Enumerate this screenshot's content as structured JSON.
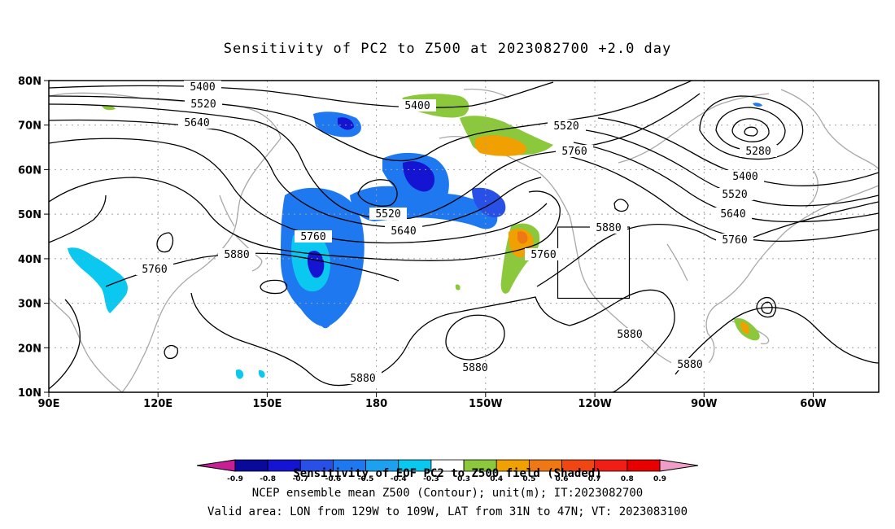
{
  "title": "Sensitivity of PC2 to Z500 at 2023082700 +2.0 day",
  "lat_labels": [
    "80N",
    "70N",
    "60N",
    "50N",
    "40N",
    "30N",
    "20N",
    "10N"
  ],
  "lon_labels": [
    "90E",
    "120E",
    "150E",
    "180",
    "150W",
    "120W",
    "90W",
    "60W"
  ],
  "contour_labels": {
    "c5400a": "5400",
    "c5520a": "5520",
    "c5640a": "5640",
    "c5400b": "5400",
    "c5520b": "5520",
    "c5760a": "5760",
    "c5280": "5280",
    "c5400c": "5400",
    "c5520c": "5520",
    "c5640c": "5640",
    "c5760c": "5760",
    "c5520d": "5520",
    "c5640d": "5640",
    "c5760d": "5760",
    "c5760e": "5760",
    "c5760f": "5760",
    "c5880a": "5880",
    "c5880b": "5880",
    "c5880c": "5880",
    "c5880d": "5880",
    "c5880e": "5880",
    "c5880f": "5880"
  },
  "colorbar": {
    "labels": [
      "-0.9",
      "-0.8",
      "-0.7",
      "-0.6",
      "-0.5",
      "-0.4",
      "-0.3",
      "0.3",
      "0.4",
      "0.5",
      "0.6",
      "0.7",
      "0.8",
      "0.9"
    ],
    "colors": [
      "#a0007a",
      "#0a0a9a",
      "#1414d2",
      "#2850e6",
      "#1e78f0",
      "#1ea0f0",
      "#0ac8f0",
      "#ffffff",
      "#8cc83c",
      "#f0a000",
      "#f07814",
      "#f04614",
      "#f01e14",
      "#e60000",
      "#f09ec8"
    ],
    "lower_extend_color": "#c81e96",
    "upper_extend_color": "#f09ec8"
  },
  "captions": {
    "line1": "Sensitivity of EOF PC2 to Z500 field (Shaded)",
    "line2": "NCEP ensemble mean Z500 (Contour); unit(m); IT:2023082700",
    "line3": "Valid area: LON from 129W to 109W, LAT from 31N to 47N; VT: 2023083100"
  },
  "valid_area": {
    "lon_from": "129W",
    "lon_to": "109W",
    "lat_from": "31N",
    "lat_to": "47N"
  }
}
